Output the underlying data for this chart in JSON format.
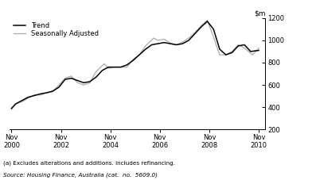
{
  "title": "",
  "ylim": [
    200,
    1200
  ],
  "yticks": [
    200,
    400,
    600,
    800,
    1000,
    1200
  ],
  "footnote1": "(a) Excludes alterations and additions. Includes refinancing.",
  "footnote2": "Source: Housing Finance, Australia (cat.  no.  5609.0)",
  "legend_trend": "Trend",
  "legend_seasonal": "Seasonally Adjusted",
  "trend_color": "#000000",
  "seasonal_color": "#aaaaaa",
  "background_color": "#ffffff",
  "xtick_labels": [
    "Nov\n2000",
    "Nov\n2002",
    "Nov\n2004",
    "Nov\n2006",
    "Nov\n2008",
    "Nov\n2010"
  ],
  "xtick_positions": [
    2000.83,
    2002.83,
    2004.83,
    2006.83,
    2008.83,
    2010.83
  ],
  "xlim": [
    2000.75,
    2011.1
  ],
  "trend_x": [
    2000.83,
    2001.0,
    2001.25,
    2001.5,
    2001.75,
    2002.0,
    2002.25,
    2002.5,
    2002.75,
    2003.0,
    2003.25,
    2003.5,
    2003.75,
    2004.0,
    2004.25,
    2004.5,
    2004.75,
    2005.0,
    2005.25,
    2005.5,
    2005.75,
    2006.0,
    2006.25,
    2006.5,
    2006.75,
    2007.0,
    2007.25,
    2007.5,
    2007.75,
    2008.0,
    2008.25,
    2008.5,
    2008.75,
    2009.0,
    2009.25,
    2009.5,
    2009.75,
    2010.0,
    2010.25,
    2010.5,
    2010.83
  ],
  "trend_y": [
    390,
    430,
    460,
    490,
    505,
    520,
    530,
    545,
    580,
    650,
    660,
    640,
    620,
    630,
    670,
    730,
    760,
    760,
    760,
    780,
    820,
    870,
    920,
    960,
    970,
    980,
    970,
    960,
    970,
    1000,
    1060,
    1120,
    1170,
    1100,
    920,
    870,
    890,
    950,
    960,
    900,
    910
  ],
  "seasonal_x": [
    2000.83,
    2001.0,
    2001.25,
    2001.58,
    2001.75,
    2002.0,
    2002.25,
    2002.5,
    2002.75,
    2003.0,
    2003.25,
    2003.5,
    2003.75,
    2004.0,
    2004.25,
    2004.58,
    2004.75,
    2005.0,
    2005.25,
    2005.5,
    2005.75,
    2006.0,
    2006.25,
    2006.58,
    2006.75,
    2007.0,
    2007.25,
    2007.5,
    2007.75,
    2008.0,
    2008.25,
    2008.5,
    2008.75,
    2009.0,
    2009.25,
    2009.5,
    2009.75,
    2010.0,
    2010.25,
    2010.58,
    2010.83
  ],
  "seasonal_y": [
    380,
    430,
    450,
    490,
    510,
    510,
    530,
    540,
    600,
    660,
    680,
    620,
    600,
    620,
    720,
    790,
    750,
    760,
    760,
    760,
    830,
    870,
    950,
    1020,
    1000,
    1010,
    975,
    960,
    985,
    1020,
    1070,
    1130,
    1180,
    1030,
    870,
    870,
    900,
    960,
    930,
    870,
    930
  ]
}
